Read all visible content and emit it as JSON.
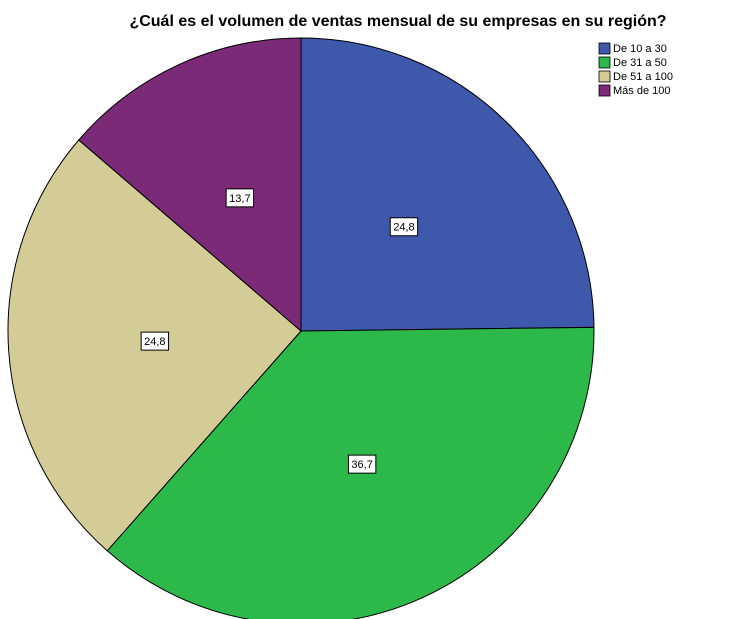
{
  "chart_data": {
    "type": "pie",
    "title": "¿Cuál es el volumen de ventas mensual de su empresas en su región?",
    "categories": [
      "De 10 a 30",
      "De 31 a 50",
      "De 51 a 100",
      "Más de 100"
    ],
    "values": [
      24.8,
      36.7,
      24.8,
      13.7
    ],
    "value_labels": [
      "24,8",
      "36,7",
      "24,8",
      "13,7"
    ],
    "colors": [
      "#3e58ac",
      "#2db84a",
      "#d4cc97",
      "#7b2a78"
    ],
    "legend": "top-right"
  }
}
